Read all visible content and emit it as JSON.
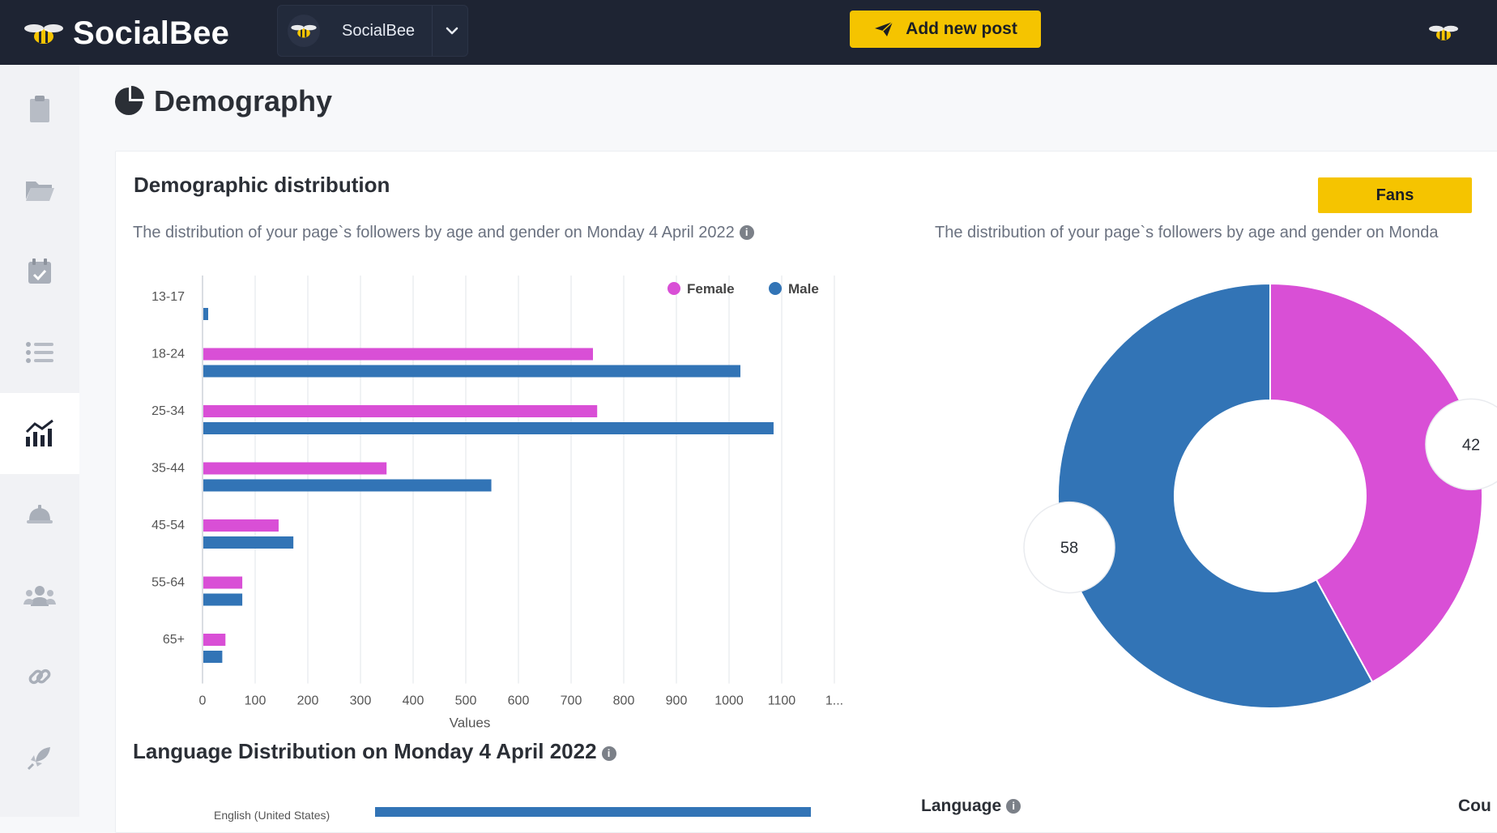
{
  "topbar": {
    "brand": "SocialBee",
    "workspace_name": "SocialBee",
    "add_post_label": "Add new post"
  },
  "sidebar": {
    "items": [
      {
        "icon": "clipboard-icon"
      },
      {
        "icon": "folder-icon"
      },
      {
        "icon": "calendar-icon"
      },
      {
        "icon": "list-icon"
      },
      {
        "icon": "analytics-icon",
        "active": true
      },
      {
        "icon": "bell-icon"
      },
      {
        "icon": "users-icon"
      },
      {
        "icon": "link-icon"
      },
      {
        "icon": "rocket-icon"
      }
    ]
  },
  "page": {
    "title": "Demography"
  },
  "demographic": {
    "title": "Demographic distribution",
    "subtitle_left": "The distribution of your page`s followers by age and gender on Monday 4 April 2022",
    "subtitle_right": "The distribution of your page`s followers by age and gender on Monda",
    "toggle_label": "Fans"
  },
  "chart_data": [
    {
      "type": "bar",
      "orientation": "horizontal",
      "categories": [
        "13-17",
        "18-24",
        "25-34",
        "35-44",
        "45-54",
        "55-64",
        "65+"
      ],
      "series": [
        {
          "name": "Female",
          "color": "#d94fd6",
          "values": [
            0,
            740,
            748,
            348,
            143,
            74,
            42
          ]
        },
        {
          "name": "Male",
          "color": "#3274b6",
          "values": [
            8,
            1020,
            1083,
            547,
            171,
            74,
            36
          ]
        }
      ],
      "xlabel": "Values",
      "xticks": [
        "0",
        "100",
        "200",
        "300",
        "400",
        "500",
        "600",
        "700",
        "800",
        "900",
        "1000",
        "1100",
        "1..."
      ],
      "xlim": [
        0,
        1200
      ],
      "legend": "top-right",
      "grid": true
    },
    {
      "type": "pie",
      "donut": true,
      "slices": [
        {
          "name": "Female",
          "value": 42,
          "color": "#d94fd6"
        },
        {
          "name": "Male",
          "value": 58,
          "color": "#3274b6"
        }
      ],
      "labels": [
        "42",
        "58"
      ]
    }
  ],
  "language": {
    "title": "Language Distribution on Monday 4 April 2022",
    "first_row_label": "English (United States)",
    "first_row_value": 1,
    "col_language": "Language",
    "col_count": "Cou"
  }
}
